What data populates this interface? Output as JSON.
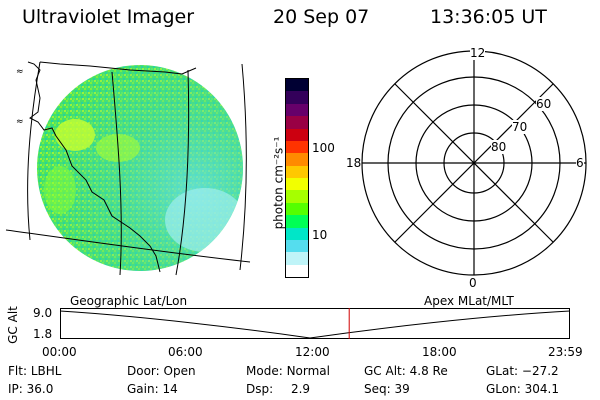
{
  "header": {
    "title": "Ultraviolet Imager",
    "date": "20 Sep 07",
    "time": "13:36:05 UT"
  },
  "colorbar": {
    "unit_label": "photon cm⁻²s⁻¹",
    "ticks": [
      "100",
      "10"
    ],
    "colors": [
      "#000033",
      "#33005a",
      "#66006a",
      "#990044",
      "#cc0010",
      "#ff3300",
      "#ff8a00",
      "#ffc800",
      "#f2ff00",
      "#a6ff00",
      "#55ff00",
      "#00ff55",
      "#00e6c8",
      "#55ddee",
      "#bff4f8",
      "#ffffff"
    ]
  },
  "polar": {
    "labels": [
      "12",
      "6",
      "0",
      "18",
      "60",
      "70",
      "80"
    ]
  },
  "plot": {
    "left_label": "Geographic Lat/Lon",
    "right_label": "Apex MLat/MLT",
    "y_axis_label": "GC Alt",
    "y_ticks": [
      "9.0",
      "1.8"
    ],
    "x_ticks": [
      "00:00",
      "06:00",
      "12:00",
      "18:00",
      "23:59"
    ],
    "current_time_marker": "13:36"
  },
  "status": {
    "filter_label": "Flt:",
    "filter_value": "LBHL",
    "door_label": "Door:",
    "door_value": "Open",
    "mode_label": "Mode:",
    "mode_value": "Normal",
    "gcalt_label": "GC Alt:",
    "gcalt_value": "4.8 Re",
    "glat_label": "GLat:",
    "glat_value": "−27.2",
    "ip_label": "IP:",
    "ip_value": "36.0",
    "gain_label": "Gain:",
    "gain_value": "14",
    "dsp_label": "Dsp:",
    "dsp_value": "2.9",
    "seq_label": "Seq:",
    "seq_value": "39",
    "glon_label": "GLon:",
    "glon_value": "304.1"
  }
}
